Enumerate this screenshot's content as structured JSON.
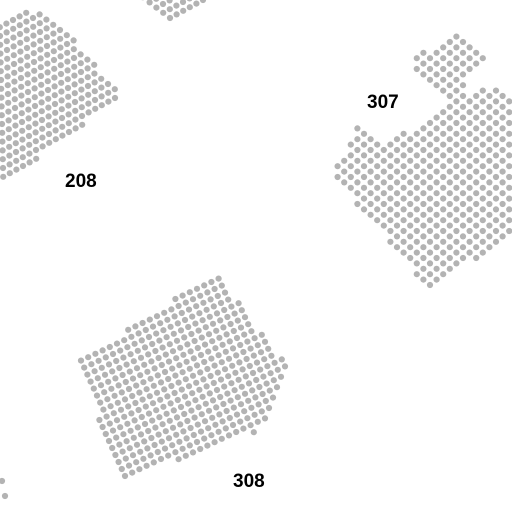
{
  "map": {
    "colors": {
      "background": "#ffffff",
      "seat": "#b3b3b3",
      "label": "#000000"
    },
    "sections": [
      {
        "id": "208",
        "label": "208"
      },
      {
        "id": "307",
        "label": "307"
      },
      {
        "id": "308",
        "label": "308"
      }
    ]
  }
}
